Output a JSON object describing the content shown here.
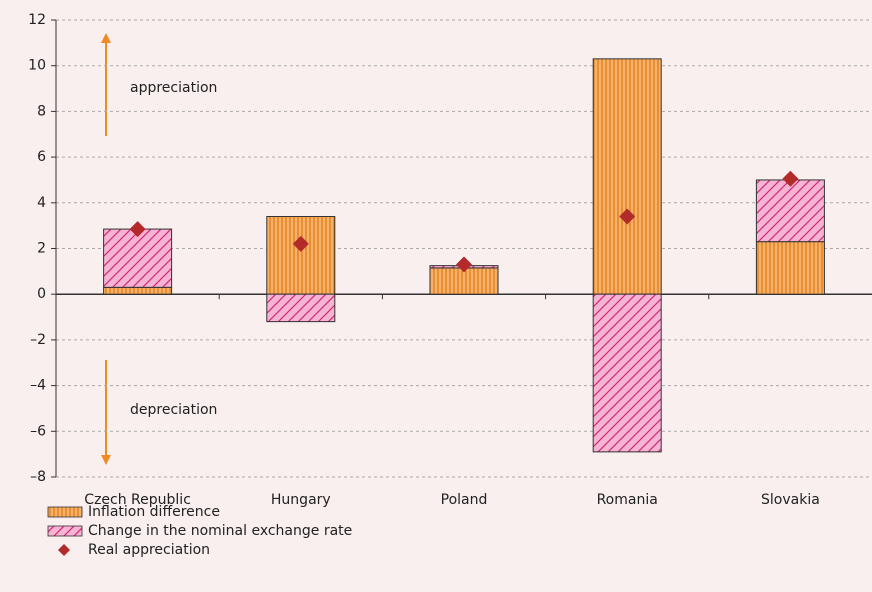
{
  "chart_data": {
    "type": "bar",
    "categories": [
      "Czech Republic",
      "Hungary",
      "Poland",
      "Romania",
      "Slovakia"
    ],
    "series": [
      {
        "name": "Inflation difference",
        "color": "#f6b26b",
        "values": [
          0.3,
          3.4,
          1.15,
          10.3,
          2.3
        ]
      },
      {
        "name": "Change in the nominal exchange rate",
        "color": "#f7b3d2",
        "values": [
          2.55,
          -1.2,
          0.1,
          -6.9,
          2.7
        ]
      },
      {
        "name": "Real appreciation",
        "type": "scatter",
        "color": "#b22a2a",
        "values": [
          2.85,
          2.2,
          1.3,
          3.4,
          5.05
        ]
      }
    ],
    "ylim": [
      -8,
      12
    ],
    "yticks": [
      {
        "value": -8,
        "label": "–8"
      },
      {
        "value": -6,
        "label": "–6"
      },
      {
        "value": -4,
        "label": "–4"
      },
      {
        "value": -2,
        "label": "–2"
      },
      0,
      2,
      4,
      6,
      8,
      10,
      12
    ],
    "grid": true,
    "stacked": true,
    "annotations": [
      "appreciation",
      "depreciation"
    ]
  }
}
